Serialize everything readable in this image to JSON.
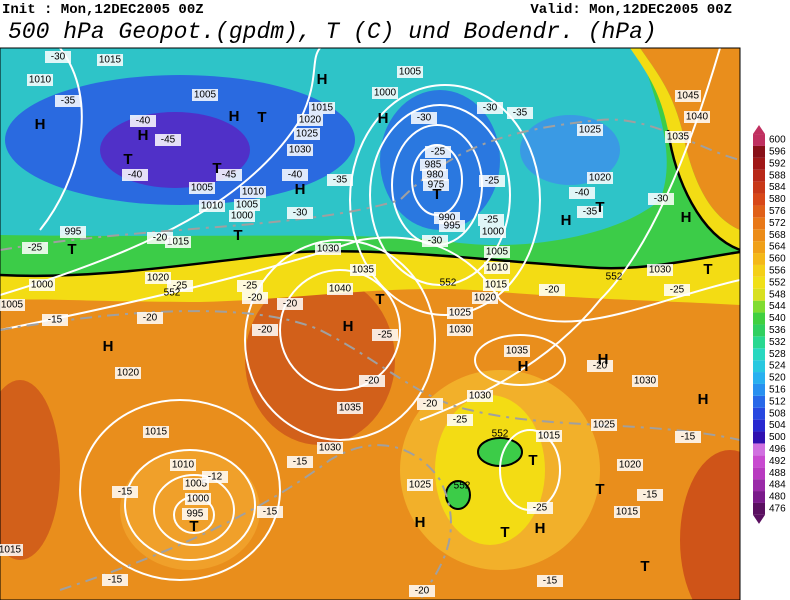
{
  "header": {
    "init": "Init : Mon,12DEC2005 00Z",
    "valid": "Valid: Mon,12DEC2005 00Z",
    "title": "500 hPa Geopot.(gpdm), T (C) und Bodendr. (hPa)"
  },
  "colorbar": {
    "ticks": [
      476,
      480,
      484,
      488,
      492,
      496,
      500,
      504,
      508,
      512,
      516,
      520,
      524,
      528,
      532,
      536,
      540,
      544,
      548,
      552,
      556,
      560,
      564,
      568,
      572,
      576,
      580,
      584,
      588,
      592,
      596,
      600
    ]
  },
  "map": {
    "isobar_labels": [
      1015,
      1010,
      1005,
      1015,
      1020,
      1025,
      1030,
      1005,
      1010,
      1005,
      1000,
      1010,
      1005,
      1000,
      985,
      980,
      975,
      990,
      995,
      1000,
      1005,
      1010,
      1015,
      1020,
      1025,
      1030,
      1015,
      1020,
      1035,
      1040,
      1030,
      1020,
      1015,
      1010,
      1005,
      1000,
      995,
      1035,
      1030,
      1030,
      1025,
      1020,
      1015,
      1025,
      1015,
      1030,
      1035,
      1045,
      1040,
      1035,
      1025,
      1020,
      1030,
      995,
      1000,
      1005,
      1015
    ],
    "temperature_labels": [
      -30,
      -35,
      -40,
      -45,
      -40,
      -45,
      -40,
      -35,
      -30,
      -30,
      -35,
      -25,
      -25,
      -25,
      -30,
      -30,
      -40,
      -35,
      -30,
      -25,
      -20,
      -25,
      -20,
      -20,
      -25,
      -20,
      -15,
      -20,
      -25,
      -20,
      -20,
      -25,
      -15,
      -15,
      -12,
      -15,
      -25,
      -15,
      -15,
      -20,
      -20,
      -15,
      -15,
      -20,
      -25
    ],
    "centers": [
      "H",
      "H",
      "H",
      "H",
      "H",
      "H",
      "H",
      "H",
      "H",
      "H",
      "H",
      "H",
      "T",
      "H",
      "H",
      "H",
      "T",
      "T",
      "T",
      "T",
      "T",
      "T",
      "T",
      "T",
      "T",
      "T",
      "T",
      "T",
      "T"
    ],
    "height_labels": [
      552,
      552,
      552,
      552,
      552
    ]
  }
}
